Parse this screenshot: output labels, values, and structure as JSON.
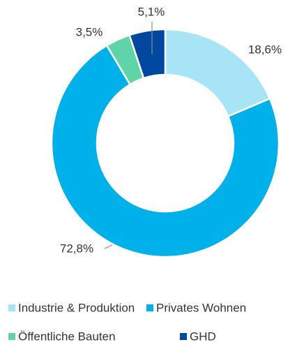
{
  "chart_data": {
    "type": "donut",
    "categories": [
      "Industrie & Produktion",
      "Privates Wohnen",
      "Öffentliche Bauten",
      "GHD"
    ],
    "values": [
      18.6,
      72.8,
      3.5,
      5.1
    ],
    "value_labels": [
      "18,6%",
      "72,8%",
      "3,5%",
      "5,1%"
    ],
    "colors": [
      "#a6e4f6",
      "#00b0e8",
      "#5fd4a8",
      "#0047a0"
    ],
    "legend": "bottom"
  }
}
